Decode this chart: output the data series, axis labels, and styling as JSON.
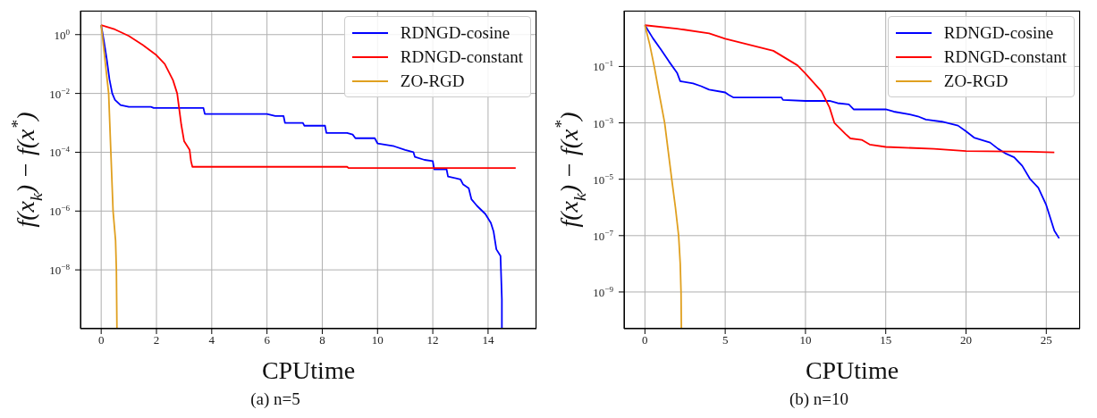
{
  "chart_data": [
    {
      "type": "line",
      "title": "(a) n=5",
      "xlabel": "CPUtime",
      "ylabel": "f(x$_{k}$) − f(x$^{*}$)",
      "log": "y",
      "grid": true,
      "legend": "top right",
      "marker": "none",
      "line_style": "solid",
      "xlim": [
        -0.75,
        15.75
      ],
      "xticks": [
        0,
        2,
        4,
        6,
        8,
        10,
        12,
        14
      ],
      "ylim": [
        1e-10,
        6.5
      ],
      "yticks": [
        {
          "value": 1,
          "label": "10$^{0}$"
        },
        {
          "value": 0.01,
          "label": "10$^{−2}$"
        },
        {
          "value": 0.0001,
          "label": "10$^{−4}$"
        },
        {
          "value": 1e-06,
          "label": "10$^{−6}$"
        },
        {
          "value": 1e-08,
          "label": "10$^{−8}$"
        }
      ],
      "series": [
        {
          "name": "RDNGD-cosine",
          "color": "#0000ff",
          "x": [
            0,
            0.1,
            0.2,
            0.3,
            0.4,
            0.5,
            0.7,
            1,
            1.8,
            1.9,
            3.7,
            3.75,
            6,
            6.3,
            6.6,
            6.65,
            7.3,
            7.35,
            8.1,
            8.15,
            8.9,
            9.1,
            9.2,
            9.9,
            10,
            10.6,
            11,
            11.3,
            11.35,
            11.7,
            12,
            12.05,
            12.5,
            12.55,
            13,
            13.1,
            13.3,
            13.4,
            13.6,
            13.9,
            14.1,
            14.2,
            14.3,
            14.45,
            14.5,
            14.5
          ],
          "values": [
            2.1,
            0.6,
            0.15,
            0.03,
            0.01,
            0.006,
            0.004,
            0.0035,
            0.0035,
            0.0032,
            0.0032,
            0.002,
            0.002,
            0.0017,
            0.0017,
            0.001,
            0.001,
            0.0008,
            0.0008,
            0.00045,
            0.00045,
            0.0004,
            0.0003,
            0.0003,
            0.0002,
            0.00016,
            0.00012,
            0.0001,
            7e-05,
            5.5e-05,
            5e-05,
            2.6e-05,
            2.6e-05,
            1.5e-05,
            1.2e-05,
            8e-06,
            6e-06,
            2.5e-06,
            1.5e-06,
            8e-07,
            4e-07,
            2e-07,
            5e-08,
            3e-08,
            1e-09,
            1e-10
          ]
        },
        {
          "name": "RDNGD-constant",
          "color": "#ff0000",
          "x": [
            0,
            0.5,
            1,
            1.5,
            2,
            2.3,
            2.6,
            2.75,
            2.9,
            3,
            3.2,
            3.25,
            3.3,
            8.9,
            8.95,
            15
          ],
          "values": [
            2.1,
            1.5,
            0.9,
            0.45,
            0.2,
            0.1,
            0.028,
            0.01,
            0.00084,
            0.00024,
            0.00012,
            5e-05,
            3.2e-05,
            3.2e-05,
            2.9e-05,
            2.9e-05
          ]
        },
        {
          "name": "ZO-RGD",
          "color": "#e0a020",
          "x": [
            0,
            0.1,
            0.2,
            0.27,
            0.35,
            0.43,
            0.52,
            0.55,
            0.57
          ],
          "values": [
            2.1,
            0.3,
            0.04,
            0.01,
            0.0001,
            1e-06,
            1e-07,
            1e-08,
            1e-10
          ]
        }
      ]
    },
    {
      "type": "line",
      "title": "(b) n=10",
      "xlabel": "CPUtime",
      "ylabel": "f(x$_{k}$) − f(x$^{*}$)",
      "log": "y",
      "grid": true,
      "legend": "top right",
      "marker": "none",
      "line_style": "solid",
      "xlim": [
        -1.3,
        27.1
      ],
      "xticks": [
        0,
        5,
        10,
        15,
        20,
        25
      ],
      "ylim": [
        5e-11,
        9.5
      ],
      "yticks": [
        {
          "value": 0.1,
          "label": "10$^{−1}$"
        },
        {
          "value": 0.001,
          "label": "10$^{−3}$"
        },
        {
          "value": 1e-05,
          "label": "10$^{−5}$"
        },
        {
          "value": 1e-07,
          "label": "10$^{−7}$"
        },
        {
          "value": 1e-09,
          "label": "10$^{−9}$"
        }
      ],
      "series": [
        {
          "name": "RDNGD-cosine",
          "color": "#0000ff",
          "x": [
            0,
            0.5,
            1,
            1.5,
            2,
            2.2,
            3,
            3.5,
            4,
            5,
            5.2,
            5.5,
            8.5,
            8.6,
            10,
            11.5,
            12,
            12.7,
            13,
            15,
            15.5,
            16.5,
            17,
            17.5,
            18.5,
            19.5,
            20,
            20.5,
            21.5,
            22,
            22.5,
            23,
            23.5,
            24,
            24.5,
            25,
            25.5,
            25.8
          ],
          "values": [
            2.9,
            1,
            0.4,
            0.15,
            0.06,
            0.03,
            0.025,
            0.02,
            0.015,
            0.012,
            0.01,
            0.008,
            0.008,
            0.0065,
            0.006,
            0.006,
            0.005,
            0.0045,
            0.003,
            0.003,
            0.0025,
            0.002,
            0.0017,
            0.0013,
            0.0011,
            0.0008,
            0.0005,
            0.0003,
            0.0002,
            0.00012,
            8e-05,
            6e-05,
            3e-05,
            1e-05,
            5e-06,
            1.2e-06,
            1.5e-07,
            8e-08
          ]
        },
        {
          "name": "RDNGD-constant",
          "color": "#ff0000",
          "x": [
            0,
            2,
            4,
            5,
            8,
            9.5,
            10,
            11,
            11.5,
            11.8,
            12.5,
            12.8,
            13.5,
            14,
            15,
            18,
            20,
            24,
            25.5
          ],
          "values": [
            2.9,
            2.2,
            1.5,
            0.97,
            0.36,
            0.11,
            0.056,
            0.013,
            0.0035,
            0.001,
            0.0004,
            0.00028,
            0.00025,
            0.00017,
            0.00014,
            0.00012,
            0.0001,
            9.5e-05,
            9e-05
          ]
        },
        {
          "name": "ZO-RGD",
          "color": "#e0a020",
          "x": [
            0,
            0.3,
            0.58,
            0.9,
            1.23,
            1.45,
            1.67,
            1.9,
            2.1,
            2.2,
            2.25,
            2.27
          ],
          "values": [
            2.9,
            0.6,
            0.1,
            0.01,
            0.001,
            0.0001,
            1e-05,
            1e-06,
            1e-07,
            1e-08,
            1e-09,
            5e-11
          ]
        }
      ]
    }
  ]
}
